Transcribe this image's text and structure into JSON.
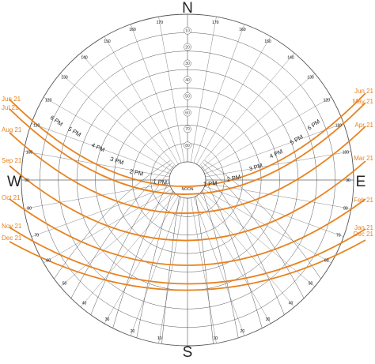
{
  "compass": {
    "north": "N",
    "south": "S",
    "east": "E",
    "west": "W"
  },
  "altitude_labels": [
    "10",
    "20",
    "30",
    "40",
    "50",
    "60",
    "70",
    "80"
  ],
  "azimuth_labels": [
    "10",
    "20",
    "30",
    "40",
    "50",
    "60",
    "70",
    "80",
    "90",
    "100",
    "110",
    "120",
    "130",
    "140",
    "150",
    "160",
    "170"
  ],
  "center_label": "NOON",
  "hour_labels": {
    "morning": [
      "6 PM",
      "5 PM",
      "4 PM",
      "3 PM",
      "2 PM",
      "1 PM"
    ],
    "afternoon": [
      "1 PM",
      "2 PM",
      "3 PM",
      "4 PM",
      "5 PM",
      "6 PM"
    ]
  },
  "date_labels_left": [
    "Jun 21",
    "Jul 21",
    "Aug 21",
    "Sep 21",
    "Oct 21",
    "Nov 21",
    "Dec 21"
  ],
  "date_labels_right": [
    "Jun 21",
    "May 21",
    "Apr 21",
    "Mar 21",
    "Feb 21",
    "Jan 21",
    "Dec 21"
  ],
  "colors": {
    "grid": "#555555",
    "path": "#e8821e",
    "text": "#222222"
  }
}
